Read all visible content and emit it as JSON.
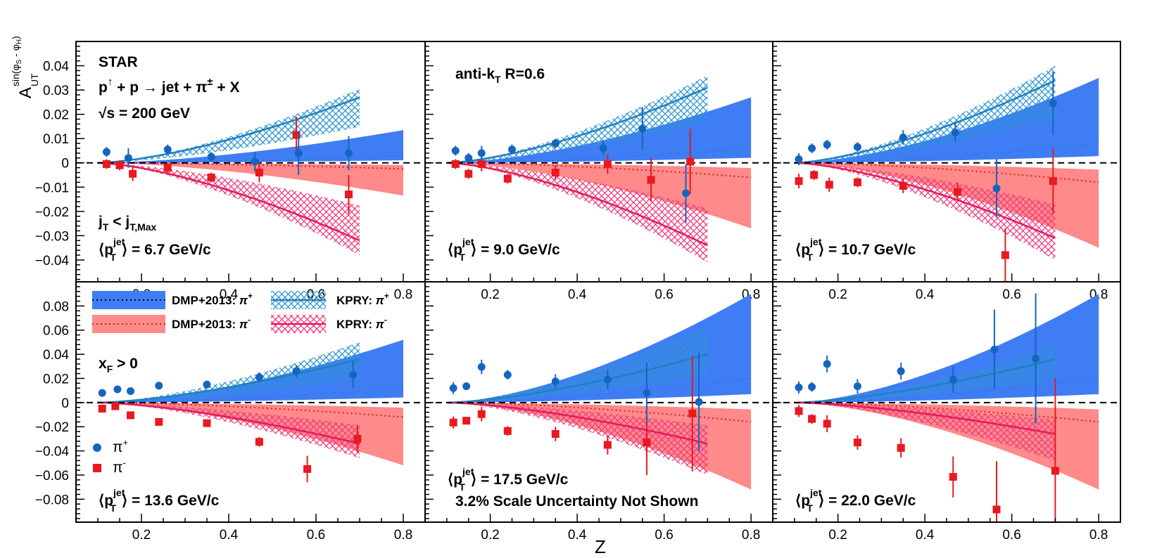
{
  "chart_data": {
    "type": "scatter",
    "xlabel": "Z",
    "ylabel": "A_UT^{sin(φS - φH)}",
    "xlim": [
      0.05,
      0.85
    ],
    "xticks": [
      "0.2",
      "0.4",
      "0.6",
      "0.8"
    ],
    "colors": {
      "pip": "#1565c0",
      "pim": "#e8191f",
      "dmp_pip": "#3f7df5",
      "dmp_pim": "#ff8a8a",
      "kpry_pip": "#2b95d0",
      "kpry_pim": "#ee3b7b"
    },
    "global": {
      "star": "STAR",
      "reaction": "p↑ + p → jet + π± + X",
      "sqrts": "√s = 200 GeV",
      "jetalgo": "anti-kT R=0.6",
      "jt_cut": "jT < jT,Max",
      "xf_cut": "xF > 0",
      "scale_note": "3.2% Scale Uncertainty Not Shown"
    },
    "legend": {
      "dmp_pip": "DMP+2013: π+",
      "dmp_pim": "DMP+2013: π-",
      "kpry_pip": "KPRY: π+",
      "kpry_pim": "KPRY: π-",
      "data_pip": "π+",
      "data_pim": "π-"
    },
    "rows": [
      {
        "ylim": [
          -0.049,
          0.05
        ],
        "yticks": [
          "0.04",
          "0.03",
          "0.02",
          "0.01",
          "0",
          "−0.01",
          "−0.02",
          "−0.03",
          "−0.04"
        ],
        "ytick_values": [
          0.04,
          0.03,
          0.02,
          0.01,
          0,
          -0.01,
          -0.02,
          -0.03,
          -0.04
        ]
      },
      {
        "ylim": [
          -0.099,
          0.1
        ],
        "yticks": [
          "0.08",
          "0.06",
          "0.04",
          "0.02",
          "0",
          "−0.02",
          "−0.04",
          "−0.06",
          "−0.08"
        ],
        "ytick_values": [
          0.08,
          0.06,
          0.04,
          0.02,
          0,
          -0.02,
          -0.04,
          -0.06,
          -0.08
        ]
      }
    ],
    "panels": [
      {
        "ptjet_label": "⟨pT jet⟩ = 6.7 GeV/c",
        "ptjet_value": "6.7",
        "pip": [
          [
            0.12,
            0.0045,
            0.002
          ],
          [
            0.17,
            0.002,
            0.004
          ],
          [
            0.26,
            0.0055,
            0.002
          ],
          [
            0.36,
            0.0025,
            0.002
          ],
          [
            0.46,
            0.0005,
            0.004
          ],
          [
            0.56,
            0.004,
            0.009
          ],
          [
            0.675,
            0.004,
            0.007
          ]
        ],
        "pim": [
          [
            0.12,
            -0.0005,
            0.002
          ],
          [
            0.15,
            -0.001,
            0.002
          ],
          [
            0.18,
            -0.0045,
            0.003
          ],
          [
            0.26,
            -0.002,
            0.002
          ],
          [
            0.36,
            -0.006,
            0.002
          ],
          [
            0.47,
            -0.004,
            0.004
          ],
          [
            0.555,
            0.0115,
            0.0075
          ],
          [
            0.675,
            -0.013,
            0.008
          ]
        ],
        "dmp_pip": [
          0.003,
          0.0135
        ],
        "dmp_pim": [
          -0.0025,
          -0.0135
        ],
        "kpry_pip": [
          0.027,
          0.0305
        ],
        "kpry_pim": [
          -0.032,
          -0.038
        ]
      },
      {
        "ptjet_label": "⟨pT jet⟩ = 9.0 GeV/c",
        "ptjet_value": "9.0",
        "pip": [
          [
            0.12,
            0.005,
            0.002
          ],
          [
            0.15,
            0.002,
            0.002
          ],
          [
            0.18,
            0.004,
            0.003
          ],
          [
            0.25,
            0.0055,
            0.002
          ],
          [
            0.35,
            0.008,
            0.002
          ],
          [
            0.46,
            0.006,
            0.003
          ],
          [
            0.55,
            0.014,
            0.009
          ],
          [
            0.65,
            -0.0125,
            0.012
          ]
        ],
        "pim": [
          [
            0.12,
            -0.0005,
            0.002
          ],
          [
            0.15,
            -0.0045,
            0.002
          ],
          [
            0.18,
            -0.0005,
            0.003
          ],
          [
            0.24,
            -0.0065,
            0.002
          ],
          [
            0.35,
            -0.004,
            0.003
          ],
          [
            0.47,
            -0.0005,
            0.004
          ],
          [
            0.57,
            -0.007,
            0.009
          ],
          [
            0.66,
            0.0005,
            0.0135
          ]
        ],
        "dmp_pip": [
          0.006,
          0.027
        ],
        "dmp_pim": [
          -0.006,
          -0.027
        ],
        "kpry_pip": [
          0.031,
          0.036
        ],
        "kpry_pim": [
          -0.034,
          -0.041
        ]
      },
      {
        "ptjet_label": "⟨pT jet⟩ = 10.7 GeV/c",
        "ptjet_value": "10.7",
        "pip": [
          [
            0.11,
            0.0015,
            0.0025
          ],
          [
            0.14,
            0.006,
            0.002
          ],
          [
            0.175,
            0.0075,
            0.002
          ],
          [
            0.245,
            0.0065,
            0.002
          ],
          [
            0.35,
            0.0105,
            0.003
          ],
          [
            0.47,
            0.0125,
            0.004
          ],
          [
            0.565,
            -0.0105,
            0.012
          ],
          [
            0.695,
            0.0245,
            0.013
          ]
        ],
        "pim": [
          [
            0.11,
            -0.0075,
            0.003
          ],
          [
            0.145,
            -0.005,
            0.002
          ],
          [
            0.18,
            -0.009,
            0.003
          ],
          [
            0.245,
            -0.008,
            0.002
          ],
          [
            0.35,
            -0.0095,
            0.003
          ],
          [
            0.475,
            -0.012,
            0.004
          ],
          [
            0.585,
            -0.038,
            0.011
          ],
          [
            0.695,
            -0.0075,
            0.0135
          ]
        ],
        "dmp_pip": [
          0.008,
          0.035
        ],
        "dmp_pim": [
          -0.008,
          -0.035
        ],
        "kpry_pip": [
          0.034,
          0.04
        ],
        "kpry_pim": [
          -0.031,
          -0.04
        ]
      },
      {
        "ptjet_label": "⟨pT jet⟩ = 13.6 GeV/c",
        "ptjet_value": "13.6",
        "pip": [
          [
            0.11,
            0.008,
            0.002
          ],
          [
            0.145,
            0.011,
            0.002
          ],
          [
            0.175,
            0.0095,
            0.002
          ],
          [
            0.24,
            0.014,
            0.002
          ],
          [
            0.35,
            0.015,
            0.002
          ],
          [
            0.47,
            0.021,
            0.004
          ],
          [
            0.555,
            0.026,
            0.005
          ],
          [
            0.685,
            0.023,
            0.011
          ]
        ],
        "pim": [
          [
            0.11,
            -0.005,
            0.002
          ],
          [
            0.14,
            -0.003,
            0.002
          ],
          [
            0.175,
            -0.0105,
            0.002
          ],
          [
            0.24,
            -0.016,
            0.002
          ],
          [
            0.35,
            -0.017,
            0.002
          ],
          [
            0.47,
            -0.0325,
            0.004
          ],
          [
            0.58,
            -0.055,
            0.011
          ],
          [
            0.695,
            -0.03,
            0.011
          ]
        ],
        "dmp_pip": [
          0.012,
          0.052
        ],
        "dmp_pim": [
          -0.012,
          -0.052
        ],
        "kpry_pip": [
          0.036,
          0.05
        ],
        "kpry_pim": [
          -0.034,
          -0.046
        ]
      },
      {
        "ptjet_label": "⟨pT jet⟩ = 17.5 GeV/c",
        "ptjet_value": "17.5",
        "pip": [
          [
            0.115,
            0.012,
            0.005
          ],
          [
            0.145,
            0.0135,
            0.003
          ],
          [
            0.18,
            0.0295,
            0.006
          ],
          [
            0.24,
            0.023,
            0.004
          ],
          [
            0.35,
            0.0175,
            0.006
          ],
          [
            0.47,
            0.019,
            0.008
          ],
          [
            0.56,
            0.008,
            0.025
          ],
          [
            0.68,
            0.0005,
            0.041
          ]
        ],
        "pim": [
          [
            0.115,
            -0.0165,
            0.005
          ],
          [
            0.145,
            -0.015,
            0.003
          ],
          [
            0.18,
            -0.0095,
            0.006
          ],
          [
            0.24,
            -0.0235,
            0.004
          ],
          [
            0.35,
            -0.026,
            0.006
          ],
          [
            0.47,
            -0.035,
            0.008
          ],
          [
            0.56,
            -0.033,
            0.027
          ],
          [
            0.665,
            -0.009,
            0.048
          ]
        ],
        "dmp_pip": [
          0.02,
          0.09
        ],
        "dmp_pim": [
          -0.016,
          -0.072
        ],
        "kpry_pip": [
          0.04,
          0.063
        ],
        "kpry_pim": [
          -0.034,
          -0.06
        ]
      },
      {
        "ptjet_label": "⟨pT jet⟩ = 22.0 GeV/c",
        "ptjet_value": "22.0",
        "pip": [
          [
            0.11,
            0.0125,
            0.005
          ],
          [
            0.14,
            0.013,
            0.004
          ],
          [
            0.175,
            0.032,
            0.007
          ],
          [
            0.245,
            0.0135,
            0.006
          ],
          [
            0.345,
            0.026,
            0.007
          ],
          [
            0.465,
            0.019,
            0.011
          ],
          [
            0.56,
            0.044,
            0.033
          ],
          [
            0.655,
            0.0365,
            0.054
          ]
        ],
        "pim": [
          [
            0.11,
            -0.007,
            0.005
          ],
          [
            0.14,
            -0.0135,
            0.004
          ],
          [
            0.175,
            -0.0175,
            0.007
          ],
          [
            0.245,
            -0.033,
            0.006
          ],
          [
            0.345,
            -0.0375,
            0.008
          ],
          [
            0.465,
            -0.0615,
            0.017
          ],
          [
            0.565,
            -0.0885,
            0.04
          ],
          [
            0.7,
            -0.0565,
            0.077
          ]
        ],
        "dmp_pip": [
          0.02,
          0.09
        ],
        "dmp_pim": [
          -0.016,
          -0.072
        ],
        "kpry_pip": [
          0.036,
          0.047
        ],
        "kpry_pim": [
          -0.026,
          -0.048
        ]
      }
    ]
  }
}
